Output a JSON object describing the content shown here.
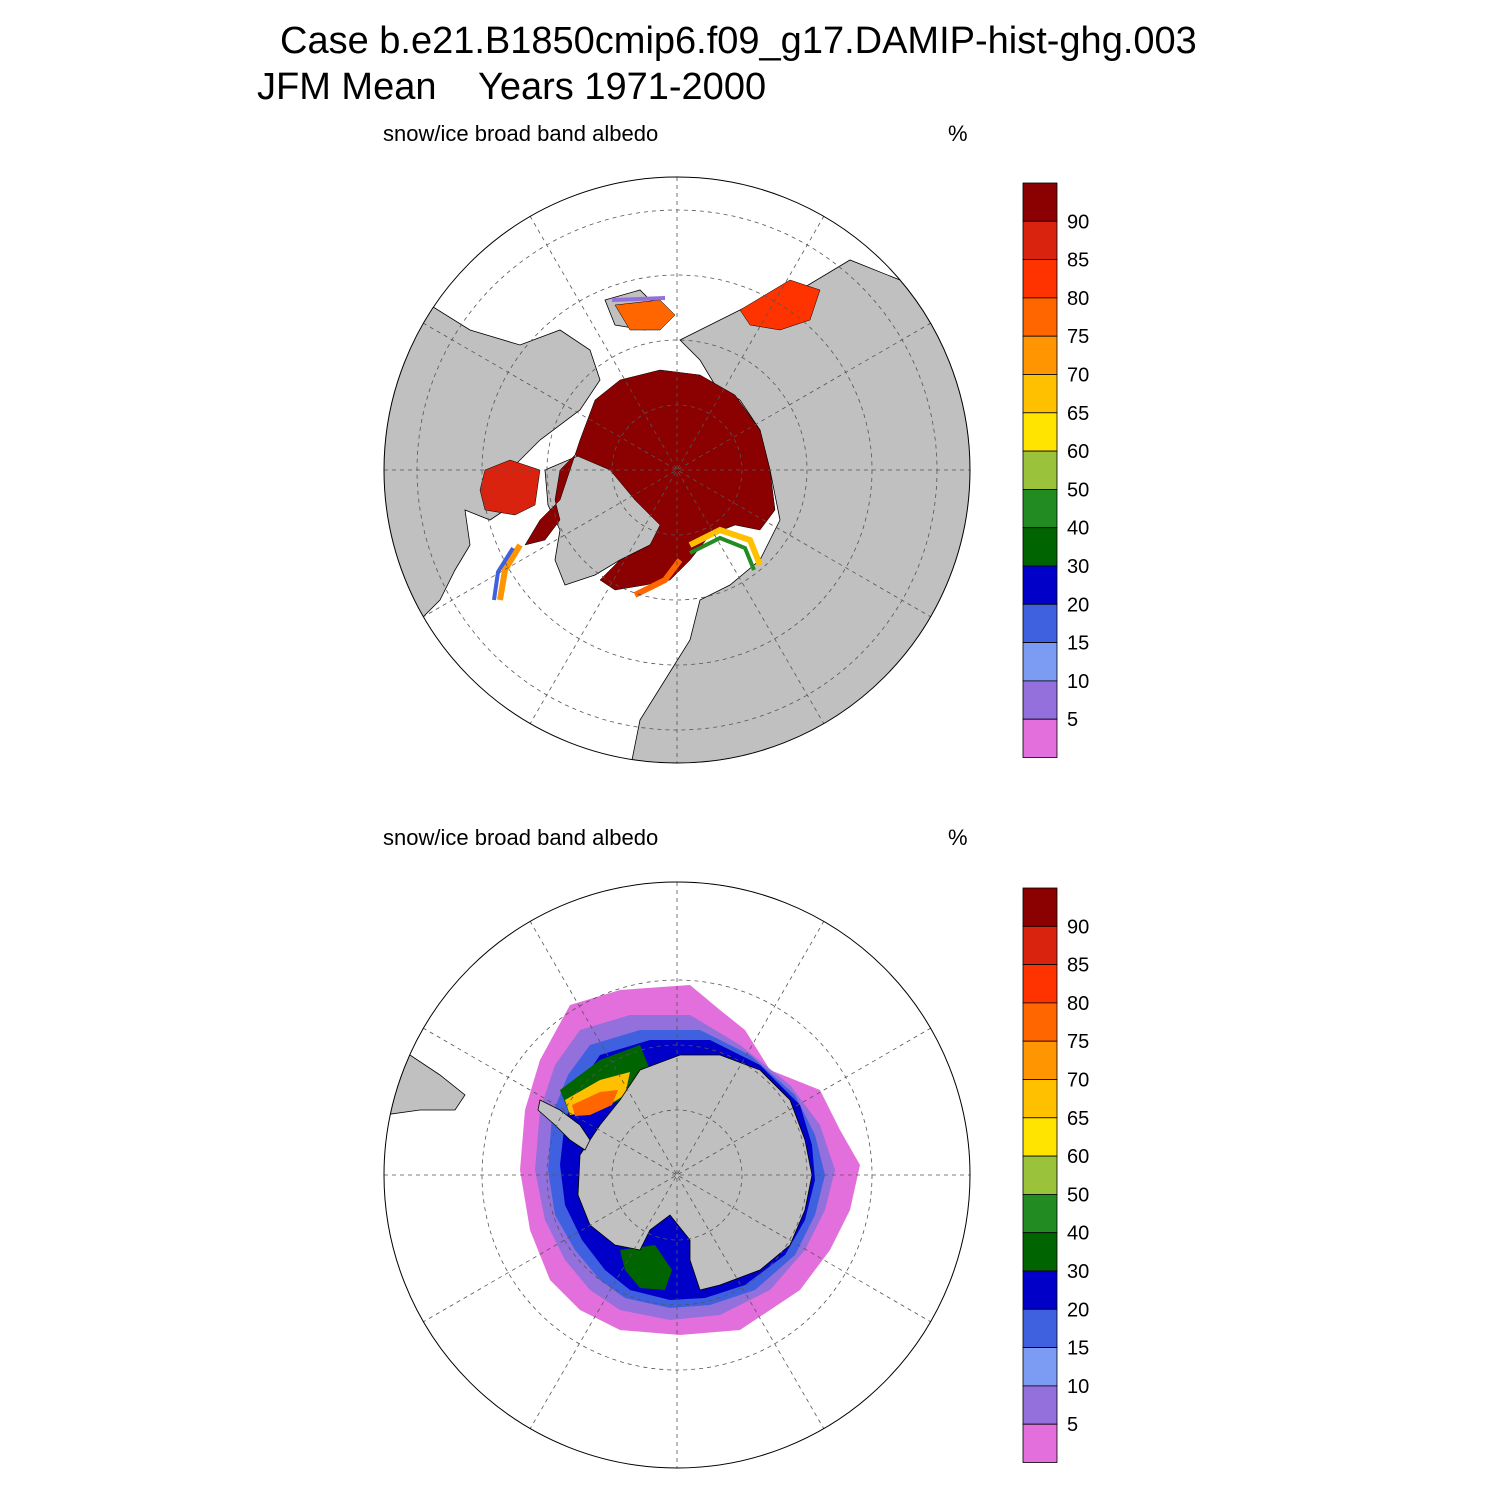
{
  "header": {
    "title_line1": "Case b.e21.B1850cmip6.f09_g17.DAMIP-hist-ghg.003",
    "title_line2": "JFM Mean    Years 1971-2000"
  },
  "panels": [
    {
      "id": "north",
      "title": "snow/ice broad band albedo",
      "units": "%"
    },
    {
      "id": "south",
      "title": "snow/ice broad band albedo",
      "units": "%"
    }
  ],
  "colorbar": {
    "labels": [
      "90",
      "85",
      "80",
      "75",
      "70",
      "65",
      "60",
      "50",
      "40",
      "30",
      "20",
      "15",
      "10",
      "5"
    ],
    "colors_top_to_bottom": [
      "#8b0000",
      "#d9230f",
      "#ff3300",
      "#ff6600",
      "#ff9500",
      "#ffc000",
      "#ffe400",
      "#9ac23a",
      "#228b22",
      "#006400",
      "#0000c8",
      "#3f61e0",
      "#7b9cf2",
      "#9370db",
      "#e36fdd"
    ]
  },
  "map_colors": {
    "land": "#c0c0c0",
    "ocean": "#ffffff",
    "grid": "#555555"
  }
}
